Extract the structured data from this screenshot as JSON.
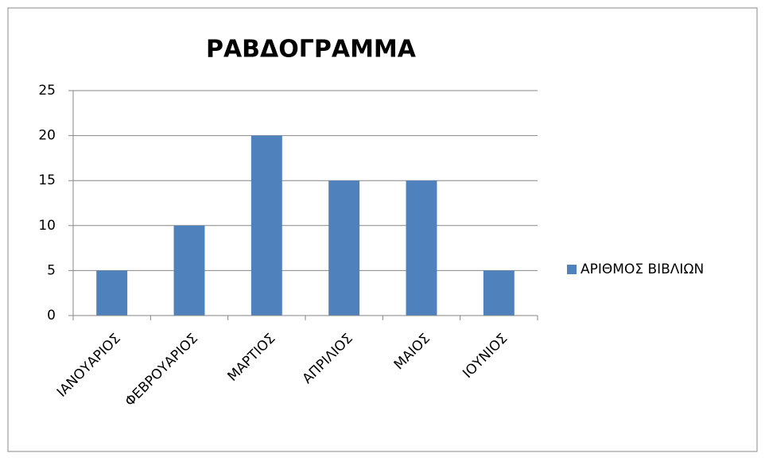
{
  "chart_data": {
    "type": "bar",
    "title": "ΡΑΒΔΟΓΡΑΜΜΑ",
    "categories": [
      "ΙΑΝΟΥΑΡΙΟΣ",
      "ΦΕΒΡΟΥΑΡΙΟΣ",
      "ΜΑΡΤΙΟΣ",
      "ΑΠΡΙΛΙΟΣ",
      "ΜΑΙΟΣ",
      "ΙΟΥΝΙΟΣ"
    ],
    "series": [
      {
        "name": "ΑΡΙΘΜΟΣ ΒΙΒΛΙΩΝ",
        "color": "#4f81bd",
        "values": [
          5,
          10,
          20,
          15,
          15,
          5
        ]
      }
    ],
    "ylim": [
      0,
      25
    ],
    "yticks": [
      0,
      5,
      10,
      15,
      20,
      25
    ],
    "grid": true,
    "legend": "right"
  }
}
